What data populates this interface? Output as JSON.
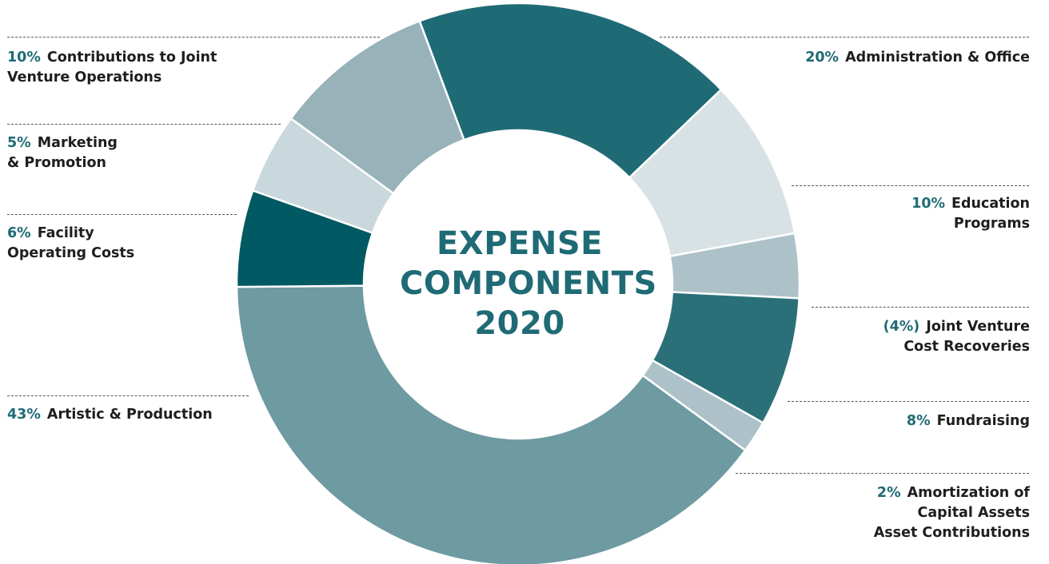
{
  "chart_data": {
    "type": "pie",
    "title_lines": [
      "EXPENSE",
      "COMPONENTS",
      "2020"
    ],
    "slices": [
      {
        "pct_label": "20%",
        "name_lines": [
          "Administration & Office"
        ],
        "value": 20,
        "color": "#1f6b75"
      },
      {
        "pct_label": "10%",
        "name_lines": [
          "Education",
          "Programs"
        ],
        "value": 10,
        "color": "#d8e2e5"
      },
      {
        "pct_label": "(4%)",
        "name_lines": [
          "Joint Venture",
          "Cost Recoveries"
        ],
        "value": 4,
        "color": "#adc2c8"
      },
      {
        "pct_label": "8%",
        "name_lines": [
          "Fundraising"
        ],
        "value": 8,
        "color": "#2b7079"
      },
      {
        "pct_label": "2%",
        "name_lines": [
          "Amortization of",
          "Capital Assets",
          "Asset Contributions"
        ],
        "value": 2,
        "color": "#adc2c8"
      },
      {
        "pct_label": "43%",
        "name_lines": [
          "Artistic & Production"
        ],
        "value": 43,
        "color": "#6e9aa2"
      },
      {
        "pct_label": "6%",
        "name_lines": [
          "Facility",
          "Operating Costs"
        ],
        "value": 6,
        "color": "#015963"
      },
      {
        "pct_label": "5%",
        "name_lines": [
          "Marketing",
          "& Promotion"
        ],
        "value": 5,
        "color": "#c9d8dc"
      },
      {
        "pct_label": "10%",
        "name_lines": [
          "Contributions to Joint",
          "Venture Operations"
        ],
        "value": 10,
        "color": "#97b2b8"
      }
    ]
  }
}
